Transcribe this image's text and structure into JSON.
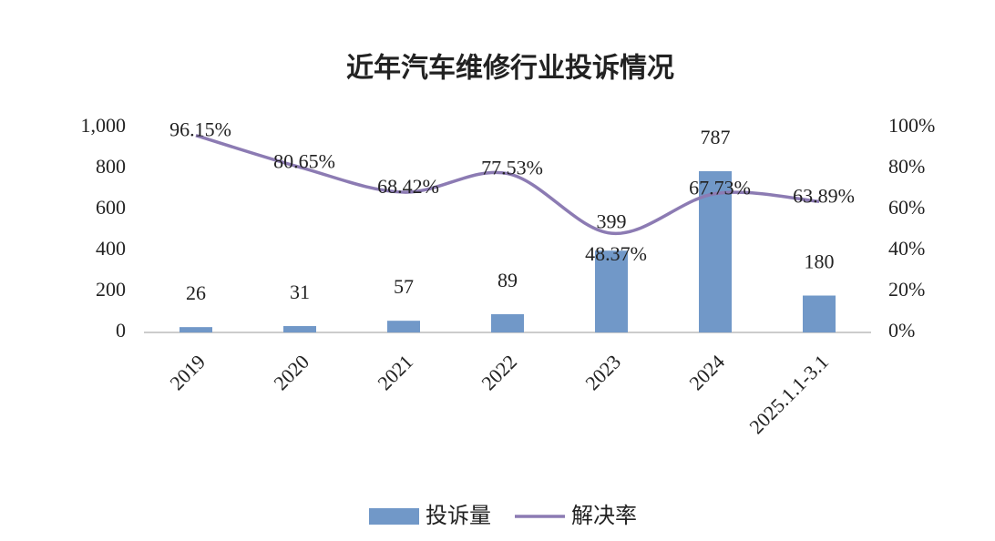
{
  "chart_data": {
    "type": "bar",
    "title": "近年汽车维修行业投诉情况",
    "categories": [
      "2019",
      "2020",
      "2021",
      "2022",
      "2023",
      "2024",
      "2025.1.1-3.1"
    ],
    "series": [
      {
        "name": "投诉量",
        "color": "#7198c8",
        "values": [
          26,
          31,
          57,
          89,
          399,
          787,
          180
        ]
      },
      {
        "name": "解决率",
        "color": "#8c7bb3",
        "type": "line",
        "axis": "y2",
        "values": [
          96.15,
          80.65,
          68.42,
          77.53,
          48.37,
          67.73,
          63.89
        ],
        "value_labels": [
          "96.15%",
          "80.65%",
          "68.42%",
          "77.53%",
          "48.37%",
          "67.73%",
          "63.89%"
        ]
      }
    ],
    "ylim": [
      0,
      1000
    ],
    "yticks": [
      0,
      200,
      400,
      600,
      800,
      {
        "value": 1000,
        "label": "1,000"
      }
    ],
    "y2lim": [
      0,
      100
    ],
    "y2ticks": [
      {
        "value": 0,
        "label": "0%"
      },
      {
        "value": 20,
        "label": "20%"
      },
      {
        "value": 40,
        "label": "40%"
      },
      {
        "value": 60,
        "label": "60%"
      },
      {
        "value": 80,
        "label": "80%"
      },
      {
        "value": 100,
        "label": "100%"
      }
    ],
    "legend": "bottom"
  }
}
